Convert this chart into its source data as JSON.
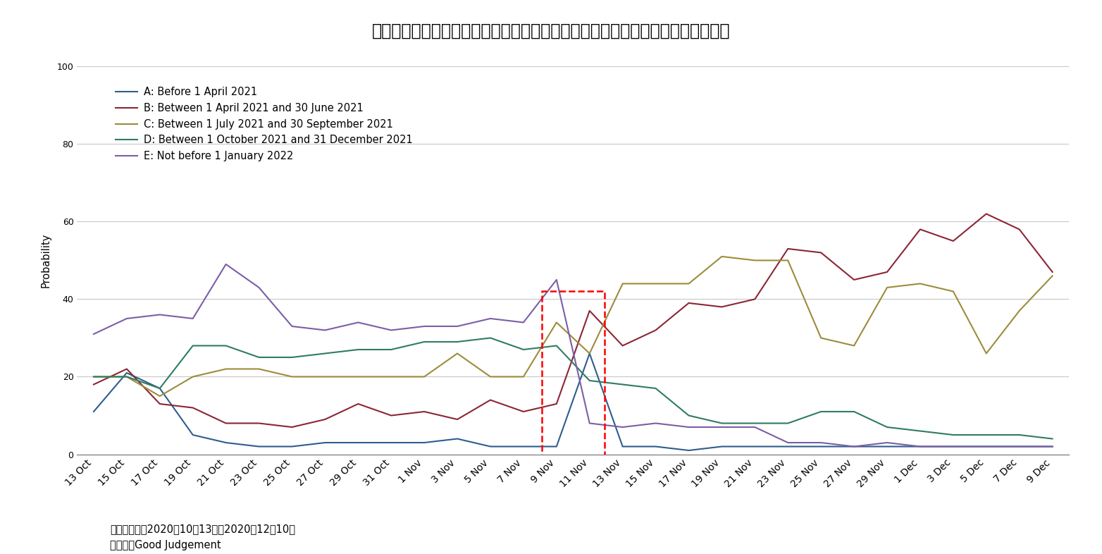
{
  "title": "図表６　新型コロナウイルスのワクチン提供時期についてのアンケート調査結果",
  "ylabel": "Probability",
  "ylim": [
    0,
    100
  ],
  "yticks": [
    0,
    20,
    40,
    60,
    80,
    100
  ],
  "note_line1": "（注）期間：2020年10月13日～2020年12月10日",
  "note_line2": "（出所）Good Judgement",
  "legend_labels": [
    "A: Before 1 April 2021",
    "B: Between 1 April 2021 and 30 June 2021",
    "C: Between 1 July 2021 and 30 September 2021",
    "D: Between 1 October 2021 and 31 December 2021",
    "E: Not before 1 January 2022"
  ],
  "colors": {
    "A": "#2e5d8e",
    "B": "#8b2635",
    "C": "#9c8c3c",
    "D": "#2e7d5e",
    "E": "#7b5ea7"
  },
  "x_labels": [
    "13 Oct",
    "15 Oct",
    "17 Oct",
    "19 Oct",
    "21 Oct",
    "23 Oct",
    "25 Oct",
    "27 Oct",
    "29 Oct",
    "31 Oct",
    "1 Nov",
    "3 Nov",
    "5 Nov",
    "7 Nov",
    "9 Nov",
    "11 Nov",
    "13 Nov",
    "15 Nov",
    "17 Nov",
    "19 Nov",
    "21 Nov",
    "23 Nov",
    "25 Nov",
    "27 Nov",
    "29 Nov",
    "1 Dec",
    "3 Dec",
    "5 Dec",
    "7 Dec",
    "9 Dec"
  ],
  "series_A": [
    11,
    21,
    17,
    5,
    3,
    2,
    2,
    3,
    3,
    3,
    3,
    4,
    2,
    2,
    2,
    26,
    2,
    2,
    1,
    2,
    2,
    2,
    2,
    2,
    2,
    2,
    2,
    2,
    2,
    2
  ],
  "series_B": [
    18,
    22,
    13,
    12,
    8,
    8,
    7,
    9,
    13,
    10,
    11,
    9,
    14,
    11,
    13,
    37,
    28,
    32,
    39,
    38,
    40,
    53,
    52,
    45,
    47,
    58,
    55,
    62,
    58,
    47
  ],
  "series_C": [
    20,
    20,
    15,
    20,
    22,
    22,
    20,
    20,
    20,
    20,
    20,
    26,
    20,
    20,
    34,
    26,
    44,
    44,
    44,
    51,
    50,
    50,
    30,
    28,
    43,
    44,
    42,
    26,
    37,
    46
  ],
  "series_D": [
    20,
    20,
    17,
    28,
    28,
    25,
    25,
    26,
    27,
    27,
    29,
    29,
    30,
    27,
    28,
    19,
    18,
    17,
    10,
    8,
    8,
    8,
    11,
    11,
    7,
    6,
    5,
    5,
    5,
    4
  ],
  "series_E": [
    31,
    35,
    36,
    35,
    49,
    43,
    33,
    32,
    34,
    32,
    33,
    33,
    35,
    34,
    45,
    8,
    7,
    8,
    7,
    7,
    7,
    3,
    3,
    2,
    3,
    2,
    2,
    2,
    2,
    2
  ],
  "background_color": "#ffffff",
  "grid_color": "#c8c8c8",
  "title_fontsize": 17,
  "label_fontsize": 10.5,
  "tick_fontsize": 9,
  "note_fontsize": 10.5
}
